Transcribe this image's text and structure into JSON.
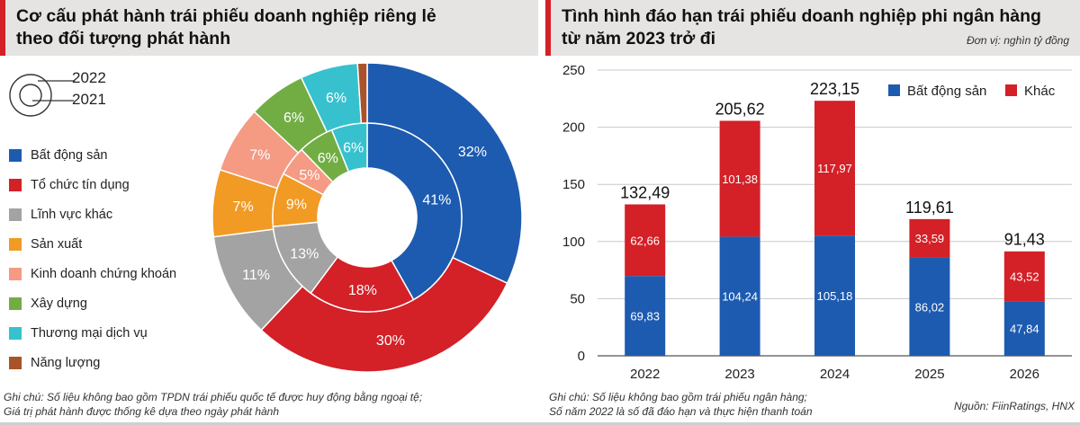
{
  "left": {
    "title_line1": "Cơ cấu phát hành trái phiếu doanh nghiệp riêng lẻ",
    "title_line2": "theo đối tượng phát hành",
    "ring_labels": {
      "outer": "2022",
      "inner": "2021"
    },
    "legend": [
      {
        "label": "Bất động sản",
        "color": "#1d5bb0"
      },
      {
        "label": "Tổ chức tín dụng",
        "color": "#d42027"
      },
      {
        "label": "Lĩnh vực khác",
        "color": "#a3a3a3"
      },
      {
        "label": "Sản xuất",
        "color": "#f19a24"
      },
      {
        "label": "Kinh doanh chứng khoán",
        "color": "#f59a83"
      },
      {
        "label": "Xây dựng",
        "color": "#72ad44"
      },
      {
        "label": "Thương mại dịch vụ",
        "color": "#37c1cf"
      },
      {
        "label": "Năng lượng",
        "color": "#a9532a"
      }
    ],
    "note_line1": "Ghi chú: Số liệu không bao gồm TPDN trái phiếu quốc tế được huy động bằng ngoại tệ;",
    "note_line2": "Giá trị phát hành được thống kê dựa theo ngày phát hành"
  },
  "right": {
    "title_line1": "Tình hình đáo hạn trái phiếu doanh nghiệp phi ngân hàng",
    "title_line2": "từ năm 2023 trở đi",
    "unit": "Đơn vị: nghìn tỷ đồng",
    "note_line1": "Ghi chú: Số liệu không bao gồm trái phiếu ngân hàng;",
    "note_line2": "Số năm 2022 là số đã đáo hạn và thực hiện thanh toán",
    "source": "Nguồn: FiinRatings, HNX"
  },
  "chart_data": [
    {
      "type": "pie",
      "variant": "donut",
      "title": "Cơ cấu phát hành trái phiếu doanh nghiệp riêng lẻ theo đối tượng phát hành",
      "categories": [
        "Bất động sản",
        "Tổ chức tín dụng",
        "Lĩnh vực khác",
        "Sản xuất",
        "Kinh doanh chứng khoán",
        "Xây dựng",
        "Thương mại dịch vụ",
        "Năng lượng"
      ],
      "colors": [
        "#1d5bb0",
        "#d42027",
        "#a3a3a3",
        "#f19a24",
        "#f59a83",
        "#72ad44",
        "#37c1cf",
        "#a9532a"
      ],
      "series": [
        {
          "name": "2022",
          "ring": "outer",
          "values": [
            32,
            30,
            11,
            7,
            7,
            6,
            6,
            1
          ],
          "labels": [
            "32%",
            "30%",
            "11%",
            "7%",
            "7%",
            "6%",
            "6%",
            ""
          ]
        },
        {
          "name": "2021",
          "ring": "inner",
          "values": [
            41,
            18,
            13,
            9,
            5,
            6,
            6,
            0
          ],
          "labels": [
            "41%",
            "18%",
            "13%",
            "9%",
            "5%",
            "6%",
            "6%",
            ""
          ]
        }
      ]
    },
    {
      "type": "bar",
      "stacked": true,
      "title": "Tình hình đáo hạn trái phiếu doanh nghiệp phi ngân hàng từ năm 2023 trở đi",
      "unit": "Đơn vị: nghìn tỷ đồng",
      "categories": [
        "2022",
        "2023",
        "2024",
        "2025",
        "2026"
      ],
      "series": [
        {
          "name": "Bất động sản",
          "color": "#1d5bb0",
          "values": [
            69.83,
            104.24,
            105.18,
            86.02,
            47.84
          ],
          "labels": [
            "69,83",
            "104,24",
            "105,18",
            "86,02",
            "47,84"
          ]
        },
        {
          "name": "Khác",
          "color": "#d42027",
          "values": [
            62.66,
            101.38,
            117.97,
            33.59,
            43.52
          ],
          "labels": [
            "62,66",
            "101,38",
            "117,97",
            "33,59",
            "43,52"
          ]
        }
      ],
      "totals": [
        132.49,
        205.62,
        223.15,
        119.61,
        91.43
      ],
      "total_labels": [
        "132,49",
        "205,62",
        "223,15",
        "119,61",
        "91,43"
      ],
      "yticks": [
        "0",
        "50",
        "100",
        "150",
        "200",
        "250"
      ],
      "ylim": [
        0,
        250
      ],
      "legend_position": "top-right",
      "grid": true
    }
  ]
}
